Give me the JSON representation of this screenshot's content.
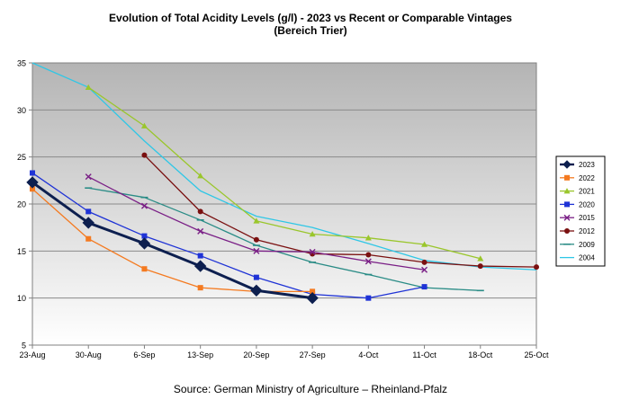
{
  "chart_data": {
    "type": "line",
    "title": "Evolution of Total Acidity Levels (g/l) - 2023 vs Recent or Comparable Vintages",
    "subtitle": "(Bereich Trier)",
    "xlabel": "",
    "ylabel": "",
    "ylim": [
      5,
      35
    ],
    "yticks": [
      5,
      10,
      15,
      20,
      25,
      30,
      35
    ],
    "categories": [
      "23-Aug",
      "30-Aug",
      "6-Sep",
      "13-Sep",
      "20-Sep",
      "27-Sep",
      "4-Oct",
      "11-Oct",
      "18-Oct",
      "25-Oct"
    ],
    "legend_position": "right",
    "grid": true,
    "source": "Source: German Ministry of Agriculture – Rheinland-Pfalz",
    "series": [
      {
        "name": "2023",
        "color": "#0d1f4f",
        "marker": "diamond",
        "values": [
          22.3,
          18.0,
          15.8,
          13.4,
          10.8,
          10.0,
          null,
          null,
          null,
          null
        ]
      },
      {
        "name": "2022",
        "color": "#f47a20",
        "marker": "square",
        "values": [
          21.6,
          16.3,
          13.1,
          11.1,
          10.7,
          10.7,
          null,
          null,
          null,
          null
        ]
      },
      {
        "name": "2021",
        "color": "#9ac62c",
        "marker": "triangle",
        "values": [
          null,
          32.4,
          28.3,
          23.0,
          18.2,
          16.8,
          16.4,
          15.7,
          14.2,
          null
        ]
      },
      {
        "name": "2020",
        "color": "#1f33d6",
        "marker": "square",
        "values": [
          23.3,
          19.2,
          16.6,
          14.5,
          12.2,
          10.4,
          10.0,
          11.2,
          null,
          null
        ]
      },
      {
        "name": "2015",
        "color": "#7a1f86",
        "marker": "x",
        "values": [
          null,
          22.9,
          19.8,
          17.1,
          15.0,
          14.9,
          13.9,
          13.0,
          null,
          null
        ]
      },
      {
        "name": "2012",
        "color": "#7a1010",
        "marker": "circle",
        "values": [
          null,
          null,
          25.2,
          19.2,
          16.2,
          14.7,
          14.6,
          13.8,
          13.4,
          13.3
        ]
      },
      {
        "name": "2009",
        "color": "#2a8c86",
        "marker": "dash",
        "values": [
          null,
          21.7,
          20.7,
          18.3,
          15.6,
          13.8,
          12.5,
          11.1,
          10.8,
          null
        ]
      },
      {
        "name": "2004",
        "color": "#2fc7e6",
        "marker": "none",
        "values": [
          35.0,
          32.4,
          26.7,
          21.4,
          18.7,
          17.5,
          15.8,
          14.0,
          13.3,
          13.0
        ]
      }
    ]
  }
}
